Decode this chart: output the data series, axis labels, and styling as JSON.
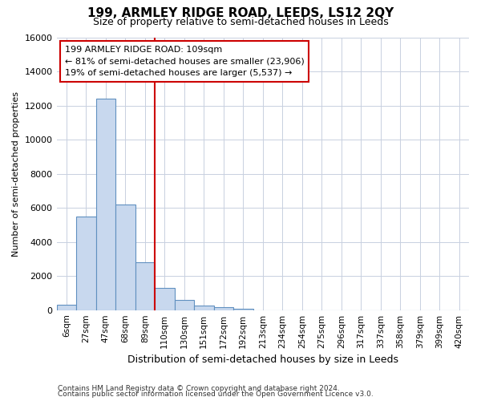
{
  "title": "199, ARMLEY RIDGE ROAD, LEEDS, LS12 2QY",
  "subtitle": "Size of property relative to semi-detached houses in Leeds",
  "xlabel": "Distribution of semi-detached houses by size in Leeds",
  "ylabel": "Number of semi-detached properties",
  "bar_labels": [
    "6sqm",
    "27sqm",
    "47sqm",
    "68sqm",
    "89sqm",
    "110sqm",
    "130sqm",
    "151sqm",
    "172sqm",
    "192sqm",
    "213sqm",
    "234sqm",
    "254sqm",
    "275sqm",
    "296sqm",
    "317sqm",
    "337sqm",
    "358sqm",
    "379sqm",
    "399sqm",
    "420sqm"
  ],
  "bar_values": [
    300,
    5500,
    12400,
    6200,
    2800,
    1300,
    600,
    250,
    150,
    100,
    0,
    0,
    0,
    0,
    0,
    0,
    0,
    0,
    0,
    0,
    0
  ],
  "bar_color": "#c8d8ee",
  "bar_edge_color": "#6090c0",
  "grid_color": "#c8d0e0",
  "bg_color": "#ffffff",
  "ylim": [
    0,
    16000
  ],
  "yticks": [
    0,
    2000,
    4000,
    6000,
    8000,
    10000,
    12000,
    14000,
    16000
  ],
  "red_line_x": 4.5,
  "red_line_color": "#cc0000",
  "annotation_title": "199 ARMLEY RIDGE ROAD: 109sqm",
  "annotation_line1": "← 81% of semi-detached houses are smaller (23,906)",
  "annotation_line2": "19% of semi-detached houses are larger (5,537) →",
  "annotation_box_color": "#ffffff",
  "annotation_box_edge": "#cc0000",
  "footer1": "Contains HM Land Registry data © Crown copyright and database right 2024.",
  "footer2": "Contains public sector information licensed under the Open Government Licence v3.0."
}
